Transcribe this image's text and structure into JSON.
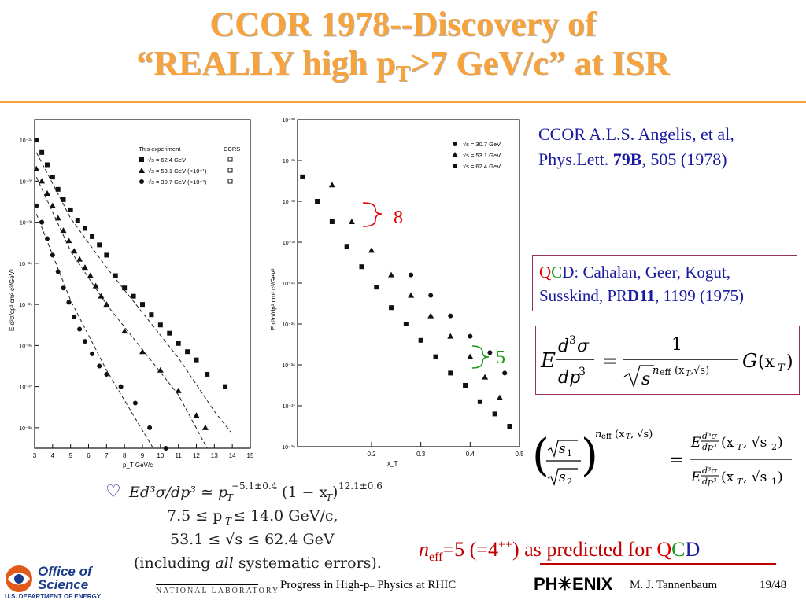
{
  "slide": {
    "title_line1": "CCOR 1978--Discovery of",
    "title_line2_pre": "“REALLY high p",
    "title_line2_sub": "T",
    "title_line2_post": ">7 GeV/c” at ISR",
    "reference_line1": "CCOR A.L.S. Angelis, et al,",
    "reference_line2_pre": "Phys.Lett. ",
    "reference_line2_bold": "79B",
    "reference_line2_post": ", 505 (1978)",
    "qcd_q": "Q",
    "qcd_c": "C",
    "qcd_d": "D",
    "qcd_text1": ": Cahalan, Geer, Kogut,",
    "qcd_text2_pre": "Susskind, PR",
    "qcd_text2_bold": "D11",
    "qcd_text2_post": ", 1199 (1975)",
    "heart_symbol": "♡",
    "fit_line1": "Ed³σ/dp³ ≃ p_T^(−5.1±0.4) (1 − x_T)^(12.1±0.6)",
    "fit_line2": "7.5 ≤ p_T ≤ 14.0 GeV/c,",
    "fit_line3": "53.1 ≤ √s ≤ 62.4 GeV",
    "fit_line4_pre": "(including ",
    "fit_line4_em": "all",
    "fit_line4_post": " systematic errors).",
    "neff_n": "n",
    "neff_sub": "eff",
    "neff_mid": "=5 (=4",
    "neff_sup": "++",
    "neff_post": ") as predicted for ",
    "neff_q": "Q",
    "neff_c": "C",
    "neff_d": "D",
    "annot_8": "8",
    "annot_5": "5",
    "footer_office": "Office of Science",
    "footer_doe": "U.S. DEPARTMENT OF ENERGY",
    "footer_lab": "NATIONAL LABORATORY",
    "footer_center_pre": "Progress in High-p",
    "footer_center_sub": "T",
    "footer_center_post": " Physics at RHIC",
    "footer_phenix": "PH✳ENIX",
    "footer_author": "M. J. Tannenbaum",
    "footer_page": "19/48"
  },
  "chart_data": [
    {
      "type": "scatter",
      "xlabel": "p_T GeV/c",
      "ylabel": "E d³σ/dp³ cm² c³/GeV²",
      "xlim": [
        3,
        15
      ],
      "ylim_log10": [
        -38.5,
        -30.5
      ],
      "x_ticks": [
        "3",
        "4",
        "5",
        "6",
        "7",
        "8",
        "9",
        "10",
        "11",
        "12",
        "13",
        "14",
        "15"
      ],
      "y_ticks": [
        "10⁻³¹",
        "10⁻³²",
        "10⁻³³",
        "10⁻³⁴",
        "10⁻³⁵",
        "10⁻³⁶",
        "10⁻³⁷",
        "10⁻³⁸"
      ],
      "legend": {
        "header_left": "This experiment",
        "header_right": "CCRS",
        "entries": [
          "√s = 62.4 GeV",
          "√s = 53.1 GeV (×10⁻¹)",
          "√s = 30.7 GeV (×10⁻²)"
        ]
      },
      "series": [
        {
          "name": "√s = 62.4 GeV",
          "marker": "square",
          "x": [
            3.1,
            3.4,
            3.7,
            4.0,
            4.3,
            4.6,
            5.0,
            5.4,
            5.8,
            6.2,
            6.6,
            7.0,
            7.5,
            8.0,
            8.5,
            9.0,
            9.5,
            10.0,
            10.5,
            11.0,
            11.5,
            12.0,
            12.6,
            13.6
          ],
          "logy": [
            -31.0,
            -31.3,
            -31.6,
            -31.9,
            -32.2,
            -32.45,
            -32.7,
            -32.95,
            -33.15,
            -33.35,
            -33.55,
            -33.8,
            -34.3,
            -34.6,
            -34.8,
            -35.0,
            -35.25,
            -35.5,
            -35.7,
            -35.95,
            -36.15,
            -36.35,
            -36.7,
            -37.0
          ]
        },
        {
          "name": "√s = 53.1 GeV (×10⁻¹)",
          "marker": "triangle",
          "x": [
            3.1,
            3.4,
            3.7,
            4.0,
            4.3,
            4.6,
            4.9,
            5.2,
            5.5,
            5.8,
            6.1,
            6.4,
            6.7,
            7.0,
            8.0,
            9.0,
            10.0,
            11.0,
            12.0,
            12.5
          ],
          "logy": [
            -31.7,
            -32.0,
            -32.3,
            -32.6,
            -32.9,
            -33.2,
            -33.45,
            -33.7,
            -33.9,
            -34.1,
            -34.3,
            -34.55,
            -34.8,
            -35.0,
            -35.65,
            -36.15,
            -36.6,
            -37.1,
            -37.7,
            -38.0
          ]
        },
        {
          "name": "√s = 30.7 GeV (×10⁻²)",
          "marker": "circle",
          "x": [
            3.1,
            3.4,
            3.7,
            4.0,
            4.3,
            4.6,
            4.9,
            5.2,
            5.5,
            5.8,
            6.2,
            6.6,
            7.0,
            7.8,
            8.6,
            9.4,
            10.3
          ],
          "logy": [
            -32.6,
            -33.0,
            -33.4,
            -33.8,
            -34.2,
            -34.6,
            -34.95,
            -35.3,
            -35.6,
            -35.9,
            -36.2,
            -36.5,
            -36.7,
            -37.0,
            -37.4,
            -38.0,
            -38.5
          ]
        }
      ]
    },
    {
      "type": "scatter",
      "xlabel": "x_T",
      "ylabel": "E d³σ/dp³ cm² c³/GeV²",
      "x_ticks": [
        "0.2",
        "0.3",
        "0.4",
        "0.5"
      ],
      "y_ticks": [
        "10⁻³⁰",
        "10⁻³¹",
        "10⁻³²",
        "10⁻³³",
        "10⁻³⁴",
        "10⁻³⁵",
        "10⁻³⁶",
        "10⁻³⁷",
        "10⁻³⁸"
      ],
      "xlim": [
        0.05,
        0.5
      ],
      "ylim_log10": [
        -38,
        -30
      ],
      "legend": {
        "entries": [
          "√s = 30.7 GeV",
          "√s = 53.1 GeV",
          "√s = 62.4 GeV"
        ]
      },
      "series": [
        {
          "name": "√s = 30.7 GeV",
          "marker": "circle",
          "x": [
            0.28,
            0.32,
            0.36,
            0.4,
            0.44,
            0.47
          ],
          "logy": [
            -33.8,
            -34.3,
            -34.8,
            -35.3,
            -35.7,
            -36.2
          ]
        },
        {
          "name": "√s = 53.1 GeV",
          "marker": "triangle",
          "x": [
            0.12,
            0.16,
            0.2,
            0.24,
            0.28,
            0.32,
            0.36,
            0.4,
            0.43,
            0.46
          ],
          "logy": [
            -31.6,
            -32.5,
            -33.2,
            -33.8,
            -34.3,
            -34.8,
            -35.3,
            -35.8,
            -36.3,
            -36.8
          ]
        },
        {
          "name": "√s = 62.4 GeV",
          "marker": "square",
          "x": [
            0.06,
            0.09,
            0.12,
            0.15,
            0.18,
            0.21,
            0.24,
            0.27,
            0.3,
            0.33,
            0.36,
            0.39,
            0.42,
            0.45,
            0.48
          ],
          "logy": [
            -31.4,
            -32.0,
            -32.5,
            -33.1,
            -33.6,
            -34.1,
            -34.6,
            -35.0,
            -35.4,
            -35.8,
            -36.2,
            -36.5,
            -36.9,
            -37.2,
            -37.5
          ]
        }
      ]
    }
  ]
}
